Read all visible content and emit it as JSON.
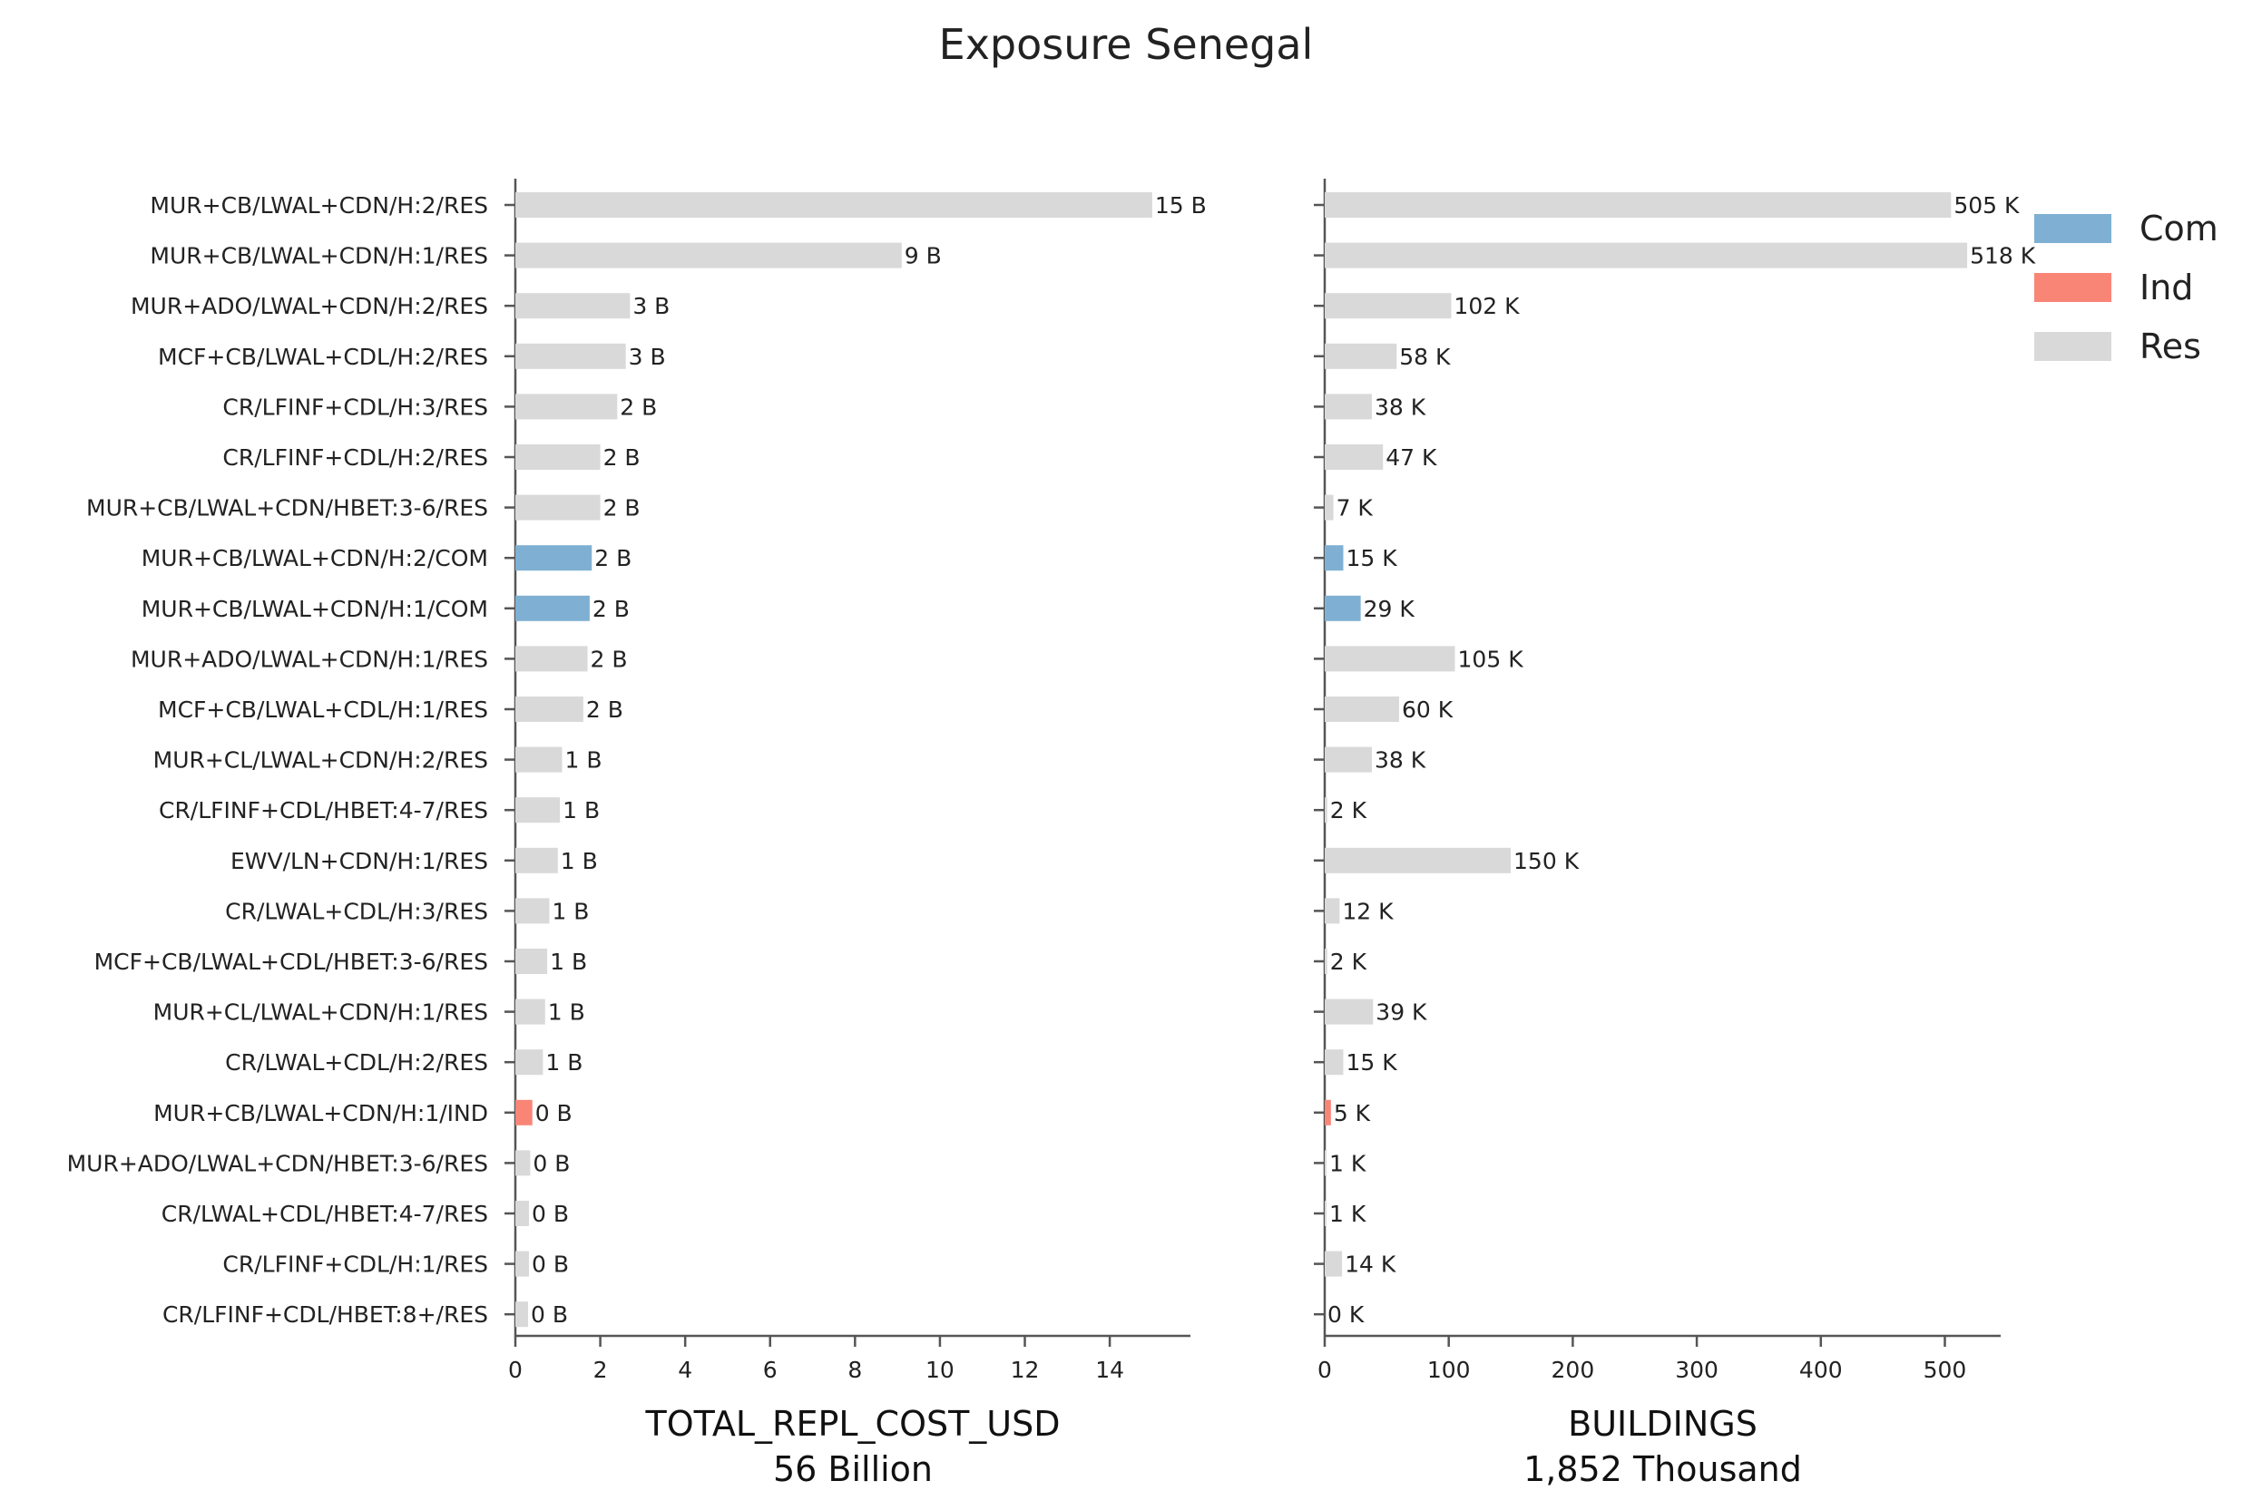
{
  "title": "Exposure Senegal",
  "colors": {
    "Com": "#7fb0d3",
    "Ind": "#f98577",
    "Res": "#d9d9d9",
    "axis": "#555555"
  },
  "legend": {
    "placement": "top-right",
    "entries": [
      "Com",
      "Ind",
      "Res"
    ]
  },
  "chart_data": [
    {
      "type": "bar",
      "orientation": "horizontal",
      "title": "Exposure Senegal",
      "xlabel": "TOTAL_REPL_COST_USD",
      "xlabel_sub": "56 Billion",
      "xlim": [
        0,
        15.9
      ],
      "xticks": [
        0,
        2,
        4,
        6,
        8,
        10,
        12,
        14
      ],
      "categories": [
        "MUR+CB/LWAL+CDN/H:2/RES",
        "MUR+CB/LWAL+CDN/H:1/RES",
        "MUR+ADO/LWAL+CDN/H:2/RES",
        "MCF+CB/LWAL+CDL/H:2/RES",
        "CR/LFINF+CDL/H:3/RES",
        "CR/LFINF+CDL/H:2/RES",
        "MUR+CB/LWAL+CDN/HBET:3-6/RES",
        "MUR+CB/LWAL+CDN/H:2/COM",
        "MUR+CB/LWAL+CDN/H:1/COM",
        "MUR+ADO/LWAL+CDN/H:1/RES",
        "MCF+CB/LWAL+CDL/H:1/RES",
        "MUR+CL/LWAL+CDN/H:2/RES",
        "CR/LFINF+CDL/HBET:4-7/RES",
        "EWV/LN+CDN/H:1/RES",
        "CR/LWAL+CDL/H:3/RES",
        "MCF+CB/LWAL+CDL/HBET:3-6/RES",
        "MUR+CL/LWAL+CDN/H:1/RES",
        "CR/LWAL+CDL/H:2/RES",
        "MUR+CB/LWAL+CDN/H:1/IND",
        "MUR+ADO/LWAL+CDN/HBET:3-6/RES",
        "CR/LWAL+CDL/HBET:4-7/RES",
        "CR/LFINF+CDL/H:1/RES",
        "CR/LFINF+CDL/HBET:8+/RES"
      ],
      "occupancy": [
        "Res",
        "Res",
        "Res",
        "Res",
        "Res",
        "Res",
        "Res",
        "Com",
        "Com",
        "Res",
        "Res",
        "Res",
        "Res",
        "Res",
        "Res",
        "Res",
        "Res",
        "Res",
        "Ind",
        "Res",
        "Res",
        "Res",
        "Res"
      ],
      "values": [
        15.0,
        9.1,
        2.7,
        2.6,
        2.4,
        2.0,
        2.0,
        1.8,
        1.75,
        1.7,
        1.6,
        1.1,
        1.05,
        1.0,
        0.8,
        0.75,
        0.7,
        0.65,
        0.4,
        0.35,
        0.32,
        0.32,
        0.3
      ],
      "value_labels": [
        "15 B",
        "9 B",
        "3 B",
        "3 B",
        "2 B",
        "2 B",
        "2 B",
        "2 B",
        "2 B",
        "2 B",
        "2 B",
        "1 B",
        "1 B",
        "1 B",
        "1 B",
        "1 B",
        "1 B",
        "1 B",
        "0 B",
        "0 B",
        "0 B",
        "0 B",
        "0 B"
      ]
    },
    {
      "type": "bar",
      "orientation": "horizontal",
      "xlabel": "BUILDINGS",
      "xlabel_sub": "1,852 Thousand",
      "xlim": [
        0,
        545
      ],
      "xticks": [
        0,
        100,
        200,
        300,
        400,
        500
      ],
      "values": [
        505,
        518,
        102,
        58,
        38,
        47,
        7,
        15,
        29,
        105,
        60,
        38,
        2,
        150,
        12,
        2,
        39,
        15,
        5,
        1,
        1,
        14,
        0
      ],
      "value_labels": [
        "505 K",
        "518 K",
        "102 K",
        "58 K",
        "38 K",
        "47 K",
        "7 K",
        "15 K",
        "29 K",
        "105 K",
        "60 K",
        "38 K",
        "2 K",
        "150 K",
        "12 K",
        "2 K",
        "39 K",
        "15 K",
        "5 K",
        "1 K",
        "1 K",
        "14 K",
        "0 K"
      ]
    }
  ]
}
